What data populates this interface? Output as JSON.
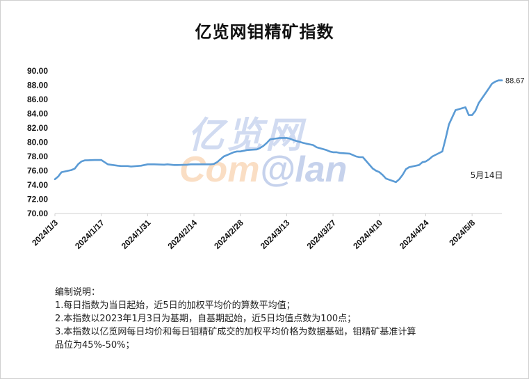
{
  "chart_data": {
    "type": "line",
    "title": "亿览网钼精矿指数",
    "y_tick_labels": [
      "90.00",
      "88.00",
      "86.00",
      "84.00",
      "82.00",
      "80.00",
      "78.00",
      "76.00",
      "74.00",
      "72.00",
      "70.00"
    ],
    "ylim": [
      70,
      90
    ],
    "x_tick_labels": [
      "2024/1/3",
      "2024/1/17",
      "2024/1/31",
      "2024/2/14",
      "2024/2/28",
      "2024/3/13",
      "2024/3/27",
      "2024/4/10",
      "2024/4/24",
      "2024/5/8"
    ],
    "grid": false,
    "line_color": "#5b9bd5",
    "series": [
      {
        "points": [
          [
            "2024-01-03",
            74.8
          ],
          [
            "2024-01-04",
            75.2
          ],
          [
            "2024-01-05",
            75.8
          ],
          [
            "2024-01-08",
            76.1
          ],
          [
            "2024-01-09",
            76.3
          ],
          [
            "2024-01-10",
            76.9
          ],
          [
            "2024-01-11",
            77.3
          ],
          [
            "2024-01-12",
            77.45
          ],
          [
            "2024-01-15",
            77.5
          ],
          [
            "2024-01-16",
            77.5
          ],
          [
            "2024-01-17",
            77.5
          ],
          [
            "2024-01-18",
            77.2
          ],
          [
            "2024-01-19",
            76.9
          ],
          [
            "2024-01-22",
            76.7
          ],
          [
            "2024-01-23",
            76.65
          ],
          [
            "2024-01-24",
            76.65
          ],
          [
            "2024-01-25",
            76.65
          ],
          [
            "2024-01-26",
            76.6
          ],
          [
            "2024-01-29",
            76.7
          ],
          [
            "2024-01-30",
            76.8
          ],
          [
            "2024-01-31",
            76.9
          ],
          [
            "2024-02-01",
            76.9
          ],
          [
            "2024-02-02",
            76.9
          ],
          [
            "2024-02-05",
            76.85
          ],
          [
            "2024-02-06",
            76.9
          ],
          [
            "2024-02-07",
            76.85
          ],
          [
            "2024-02-08",
            76.8
          ],
          [
            "2024-02-09",
            76.8
          ],
          [
            "2024-02-12",
            76.85
          ],
          [
            "2024-02-13",
            76.9
          ],
          [
            "2024-02-14",
            76.9
          ],
          [
            "2024-02-15",
            76.9
          ],
          [
            "2024-02-16",
            76.9
          ],
          [
            "2024-02-19",
            76.9
          ],
          [
            "2024-02-20",
            76.95
          ],
          [
            "2024-02-21",
            77.2
          ],
          [
            "2024-02-22",
            77.6
          ],
          [
            "2024-02-23",
            78.0
          ],
          [
            "2024-02-26",
            78.6
          ],
          [
            "2024-02-27",
            78.7
          ],
          [
            "2024-02-28",
            78.7
          ],
          [
            "2024-02-29",
            78.8
          ],
          [
            "2024-03-01",
            78.9
          ],
          [
            "2024-03-04",
            79.0
          ],
          [
            "2024-03-05",
            79.2
          ],
          [
            "2024-03-06",
            79.5
          ],
          [
            "2024-03-07",
            79.9
          ],
          [
            "2024-03-08",
            80.4
          ],
          [
            "2024-03-11",
            80.6
          ],
          [
            "2024-03-12",
            80.6
          ],
          [
            "2024-03-13",
            80.6
          ],
          [
            "2024-03-14",
            80.5
          ],
          [
            "2024-03-15",
            80.3
          ],
          [
            "2024-03-18",
            79.9
          ],
          [
            "2024-03-19",
            79.8
          ],
          [
            "2024-03-20",
            79.7
          ],
          [
            "2024-03-21",
            79.6
          ],
          [
            "2024-03-22",
            79.3
          ],
          [
            "2024-03-25",
            78.9
          ],
          [
            "2024-03-26",
            78.7
          ],
          [
            "2024-03-27",
            78.6
          ],
          [
            "2024-03-28",
            78.6
          ],
          [
            "2024-03-29",
            78.5
          ],
          [
            "2024-04-01",
            78.4
          ],
          [
            "2024-04-02",
            78.2
          ],
          [
            "2024-04-03",
            78.0
          ],
          [
            "2024-04-04",
            77.9
          ],
          [
            "2024-04-05",
            77.9
          ],
          [
            "2024-04-08",
            76.3
          ],
          [
            "2024-04-09",
            76.0
          ],
          [
            "2024-04-10",
            75.8
          ],
          [
            "2024-04-11",
            75.4
          ],
          [
            "2024-04-12",
            74.9
          ],
          [
            "2024-04-15",
            74.4
          ],
          [
            "2024-04-16",
            74.8
          ],
          [
            "2024-04-17",
            75.4
          ],
          [
            "2024-04-18",
            76.2
          ],
          [
            "2024-04-19",
            76.5
          ],
          [
            "2024-04-22",
            76.8
          ],
          [
            "2024-04-23",
            77.2
          ],
          [
            "2024-04-24",
            77.3
          ],
          [
            "2024-04-25",
            77.6
          ],
          [
            "2024-04-26",
            78.0
          ],
          [
            "2024-04-29",
            78.7
          ],
          [
            "2024-04-30",
            80.5
          ],
          [
            "2024-05-01",
            82.5
          ],
          [
            "2024-05-02",
            83.5
          ],
          [
            "2024-05-03",
            84.5
          ],
          [
            "2024-05-06",
            84.9
          ],
          [
            "2024-05-07",
            83.8
          ],
          [
            "2024-05-08",
            83.8
          ],
          [
            "2024-05-09",
            84.4
          ],
          [
            "2024-05-10",
            85.5
          ],
          [
            "2024-05-13",
            87.5
          ],
          [
            "2024-05-14",
            88.2
          ],
          [
            "2024-05-15",
            88.5
          ],
          [
            "2024-05-16",
            88.67
          ],
          [
            "2024-05-17",
            88.67
          ]
        ]
      }
    ],
    "end_value_label": "88.67",
    "annotation": "5月14日"
  },
  "watermark": {
    "cn_text": "亿览网",
    "en_part1": "Com",
    "en_part2": "@lan"
  },
  "notes": {
    "heading": "编制说明：",
    "lines": [
      "1.每日指数为当日起始，近5日的加权平均价的算数平均值；",
      "2.本指数以2023年1月3日为基期，自基期起始，近5日均值点数为100点；",
      "3.本指数以亿览网每日均价和每日钼精矿成交的加权平均价格为数据基础，钼精矿基准计算\n品位为45%-50%；"
    ]
  }
}
